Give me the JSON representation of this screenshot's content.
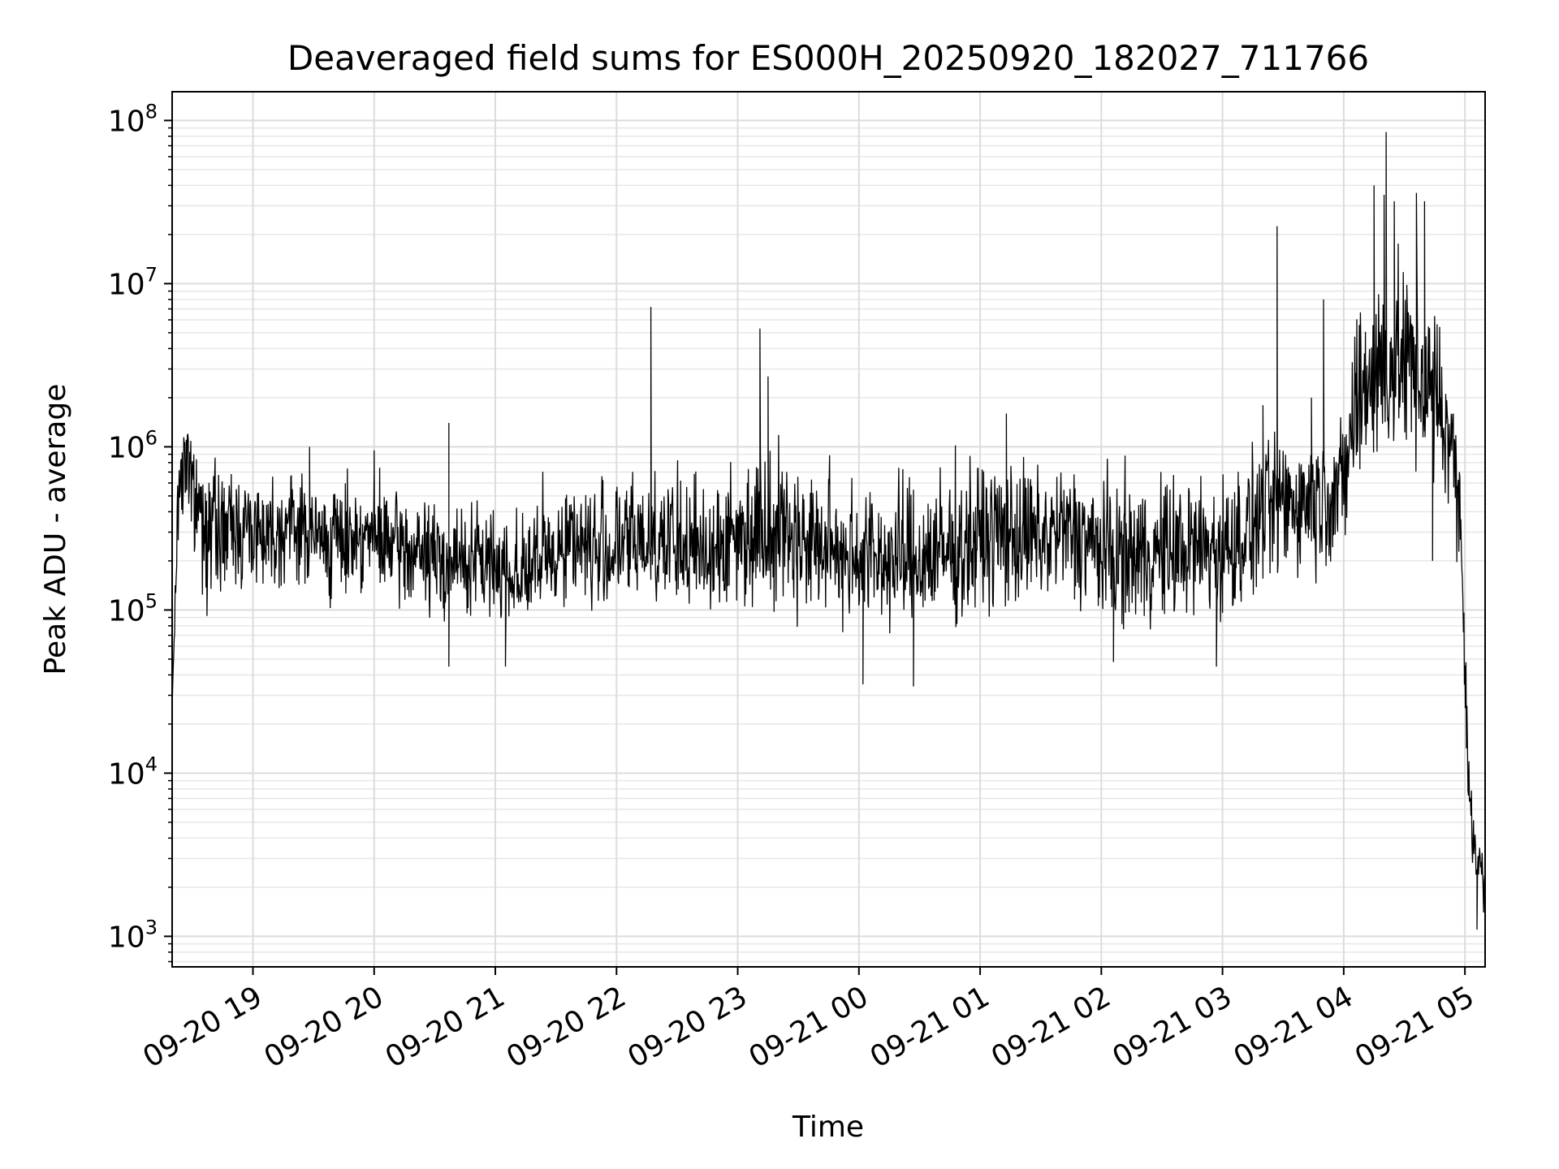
{
  "chart_data": {
    "type": "line",
    "title": "Deaveraged field sums for ES000H_20250920_182027_711766",
    "xlabel": "Time",
    "ylabel": "Peak ADU - average",
    "yscale": "log",
    "ylim": [
      650,
      150000000
    ],
    "xlim": [
      "2025-09-20 18:20",
      "2025-09-21 05:10"
    ],
    "grid": true,
    "line_color": "#000000",
    "x_ticks": [
      {
        "t": "2025-09-20 19:00",
        "label": "09-20 19"
      },
      {
        "t": "2025-09-20 20:00",
        "label": "09-20 20"
      },
      {
        "t": "2025-09-20 21:00",
        "label": "09-20 21"
      },
      {
        "t": "2025-09-20 22:00",
        "label": "09-20 22"
      },
      {
        "t": "2025-09-20 23:00",
        "label": "09-20 23"
      },
      {
        "t": "2025-09-21 00:00",
        "label": "09-21 00"
      },
      {
        "t": "2025-09-21 01:00",
        "label": "09-21 01"
      },
      {
        "t": "2025-09-21 02:00",
        "label": "09-21 02"
      },
      {
        "t": "2025-09-21 03:00",
        "label": "09-21 03"
      },
      {
        "t": "2025-09-21 04:00",
        "label": "09-21 04"
      },
      {
        "t": "2025-09-21 05:00",
        "label": "09-21 05"
      }
    ],
    "y_ticks": [
      {
        "value": 1000,
        "base": "10",
        "exp": "3"
      },
      {
        "value": 10000,
        "base": "10",
        "exp": "4"
      },
      {
        "value": 100000,
        "base": "10",
        "exp": "5"
      },
      {
        "value": 1000000,
        "base": "10",
        "exp": "6"
      },
      {
        "value": 10000000,
        "base": "10",
        "exp": "7"
      },
      {
        "value": 100000000,
        "base": "10",
        "exp": "8"
      }
    ],
    "x": [
      "2025-09-20 18:20",
      "2025-09-20 18:23",
      "2025-09-20 18:25",
      "2025-09-20 18:28",
      "2025-09-20 18:30",
      "2025-09-20 18:35",
      "2025-09-20 18:40",
      "2025-09-20 18:45",
      "2025-09-20 18:50",
      "2025-09-20 18:55",
      "2025-09-20 19:00",
      "2025-09-20 19:10",
      "2025-09-20 19:20",
      "2025-09-20 19:30",
      "2025-09-20 19:40",
      "2025-09-20 19:50",
      "2025-09-20 20:00",
      "2025-09-20 20:10",
      "2025-09-20 20:20",
      "2025-09-20 20:30",
      "2025-09-20 20:40",
      "2025-09-20 20:50",
      "2025-09-20 21:00",
      "2025-09-20 21:10",
      "2025-09-20 21:20",
      "2025-09-20 21:30",
      "2025-09-20 21:40",
      "2025-09-20 21:50",
      "2025-09-20 22:00",
      "2025-09-20 22:10",
      "2025-09-20 22:20",
      "2025-09-20 22:30",
      "2025-09-20 22:40",
      "2025-09-20 22:50",
      "2025-09-20 23:00",
      "2025-09-20 23:10",
      "2025-09-20 23:20",
      "2025-09-20 23:30",
      "2025-09-20 23:40",
      "2025-09-20 23:50",
      "2025-09-21 00:00",
      "2025-09-21 00:10",
      "2025-09-21 00:20",
      "2025-09-21 00:30",
      "2025-09-21 00:40",
      "2025-09-21 00:50",
      "2025-09-21 01:00",
      "2025-09-21 01:10",
      "2025-09-21 01:20",
      "2025-09-21 01:30",
      "2025-09-21 01:40",
      "2025-09-21 01:50",
      "2025-09-21 02:00",
      "2025-09-21 02:10",
      "2025-09-21 02:20",
      "2025-09-21 02:30",
      "2025-09-21 02:40",
      "2025-09-21 02:50",
      "2025-09-21 03:00",
      "2025-09-21 03:10",
      "2025-09-21 03:20",
      "2025-09-21 03:30",
      "2025-09-21 03:40",
      "2025-09-21 03:50",
      "2025-09-21 04:00",
      "2025-09-21 04:05",
      "2025-09-21 04:10",
      "2025-09-21 04:20",
      "2025-09-21 04:30",
      "2025-09-21 04:40",
      "2025-09-21 04:50",
      "2025-09-21 04:55",
      "2025-09-21 04:58",
      "2025-09-21 05:02",
      "2025-09-21 05:04",
      "2025-09-21 05:06",
      "2025-09-21 05:08",
      "2025-09-21 05:10"
    ],
    "typical": [
      25000,
      500000,
      900000,
      1200000,
      600000,
      400000,
      350000,
      300000,
      350000,
      330000,
      320000,
      300000,
      350000,
      280000,
      260000,
      300000,
      280000,
      240000,
      220000,
      200000,
      190000,
      200000,
      180000,
      160000,
      170000,
      230000,
      280000,
      200000,
      230000,
      260000,
      280000,
      230000,
      220000,
      250000,
      280000,
      320000,
      340000,
      280000,
      250000,
      230000,
      220000,
      200000,
      190000,
      200000,
      210000,
      230000,
      260000,
      300000,
      280000,
      270000,
      320000,
      300000,
      220000,
      200000,
      210000,
      220000,
      230000,
      240000,
      230000,
      290000,
      400000,
      480000,
      500000,
      550000,
      600000,
      1500000,
      2500000,
      3000000,
      3500000,
      2500000,
      1500000,
      900000,
      300000,
      10000,
      4000,
      3000,
      2500,
      2000
    ],
    "low": [
      25000,
      200000,
      150000,
      100000,
      100000,
      90000,
      90000,
      90000,
      90000,
      100000,
      110000,
      110000,
      110000,
      100000,
      90000,
      100000,
      100000,
      90000,
      80000,
      80000,
      70000,
      70000,
      70000,
      70000,
      70000,
      80000,
      90000,
      80000,
      80000,
      80000,
      80000,
      80000,
      70000,
      70000,
      70000,
      80000,
      80000,
      70000,
      60000,
      60000,
      60000,
      60000,
      60000,
      60000,
      60000,
      60000,
      70000,
      70000,
      70000,
      70000,
      70000,
      70000,
      60000,
      60000,
      60000,
      60000,
      60000,
      60000,
      60000,
      70000,
      90000,
      100000,
      110000,
      120000,
      130000,
      300000,
      400000,
      500000,
      500000,
      400000,
      300000,
      250000,
      100000,
      3000,
      1500,
      1200,
      1100,
      1000
    ],
    "high": [
      25000,
      1000000,
      1500000,
      1400000,
      1100000,
      1000000,
      1000000,
      900000,
      900000,
      900000,
      900000,
      900000,
      900000,
      800000,
      800000,
      800000,
      800000,
      700000,
      700000,
      650000,
      600000,
      600000,
      600000,
      600000,
      700000,
      900000,
      1000000,
      1000000,
      1000000,
      1000000,
      1100000,
      1000000,
      1000000,
      1000000,
      1100000,
      1500000,
      1500000,
      1000000,
      1000000,
      1000000,
      1000000,
      900000,
      1000000,
      1000000,
      1100000,
      1200000,
      1300000,
      1200000,
      1200000,
      1000000,
      1000000,
      1000000,
      1000000,
      1000000,
      1000000,
      1000000,
      1000000,
      1000000,
      1000000,
      1100000,
      1500000,
      1500000,
      1500000,
      1500000,
      2000000,
      10000000,
      20000000,
      20000000,
      20000000,
      15000000,
      8000000,
      2000000,
      1000000,
      30000,
      6000,
      5000,
      4500,
      3000
    ],
    "spikes": [
      {
        "t": "2025-09-20 19:28",
        "value": 1000000
      },
      {
        "t": "2025-09-20 20:00",
        "value": 950000
      },
      {
        "t": "2025-09-20 20:37",
        "value": 1400000
      },
      {
        "t": "2025-09-20 20:37",
        "value": 45000
      },
      {
        "t": "2025-09-20 21:05",
        "value": 45000
      },
      {
        "t": "2025-09-20 22:17",
        "value": 7200000
      },
      {
        "t": "2025-09-20 23:11",
        "value": 5300000
      },
      {
        "t": "2025-09-20 23:15",
        "value": 2700000
      },
      {
        "t": "2025-09-21 00:02",
        "value": 35000
      },
      {
        "t": "2025-09-21 00:27",
        "value": 34000
      },
      {
        "t": "2025-09-21 01:13",
        "value": 1600000
      },
      {
        "t": "2025-09-21 02:06",
        "value": 48000
      },
      {
        "t": "2025-09-21 02:57",
        "value": 45000
      },
      {
        "t": "2025-09-21 03:20",
        "value": 1800000
      },
      {
        "t": "2025-09-21 03:27",
        "value": 22500000
      },
      {
        "t": "2025-09-21 03:44",
        "value": 2000000
      },
      {
        "t": "2025-09-21 03:50",
        "value": 8000000
      },
      {
        "t": "2025-09-21 04:15",
        "value": 40000000
      },
      {
        "t": "2025-09-21 04:20",
        "value": 35000000
      },
      {
        "t": "2025-09-21 04:21",
        "value": 85000000
      },
      {
        "t": "2025-09-21 04:25",
        "value": 32000000
      },
      {
        "t": "2025-09-21 04:36",
        "value": 36000000
      },
      {
        "t": "2025-09-21 04:40",
        "value": 32000000
      },
      {
        "t": "2025-09-21 04:44",
        "value": 200000
      },
      {
        "t": "2025-09-21 05:06",
        "value": 1100
      }
    ]
  }
}
